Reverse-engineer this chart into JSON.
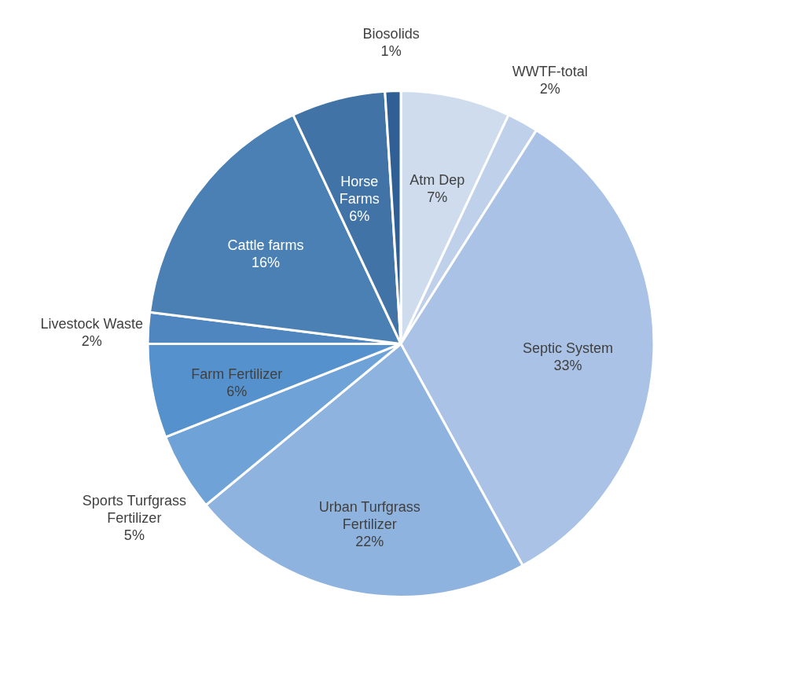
{
  "chart_data": {
    "type": "pie",
    "categories": [
      "Atm Dep",
      "WWTF-total",
      "Septic System",
      "Urban Turfgrass Fertilizer",
      "Sports Turfgrass Fertilizer",
      "Farm Fertilizer",
      "Livestock Waste",
      "Cattle farms",
      "Horse Farms",
      "Biosolids"
    ],
    "values": [
      7,
      2,
      33,
      22,
      5,
      6,
      2,
      16,
      6,
      1
    ],
    "value_labels": [
      "7%",
      "2%",
      "33%",
      "22%",
      "5%",
      "6%",
      "2%",
      "16%",
      "6%",
      "1%"
    ],
    "colors": [
      "#cfdcee",
      "#bfd0ea",
      "#a9c2e5",
      "#8fb3df",
      "#6fa3d8",
      "#5592cd",
      "#4f86c0",
      "#4a80b4",
      "#4273a6",
      "#2f5f94"
    ]
  }
}
